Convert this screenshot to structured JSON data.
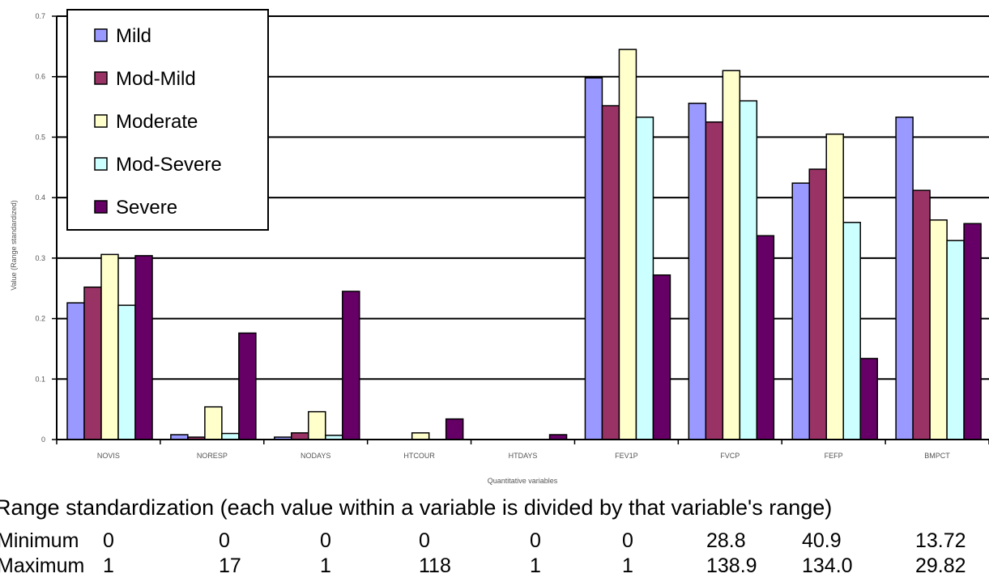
{
  "chart_data": {
    "type": "bar",
    "categories": [
      "NOVIS",
      "NORESP",
      "NODAYS",
      "HTCOUR",
      "HTDAYS",
      "FEV1P",
      "FVCP",
      "FEFP",
      "BMPCT"
    ],
    "series": [
      {
        "name": "Mild",
        "color": "#9999ff",
        "values": [
          0.226,
          0.008,
          0.004,
          0.0,
          0.0,
          0.598,
          0.556,
          0.424,
          0.533
        ]
      },
      {
        "name": "Mod-Mild",
        "color": "#993366",
        "values": [
          0.252,
          0.004,
          0.011,
          0.0,
          0.0,
          0.552,
          0.525,
          0.447,
          0.412
        ]
      },
      {
        "name": "Moderate",
        "color": "#ffffcc",
        "values": [
          0.306,
          0.054,
          0.046,
          0.011,
          0.0,
          0.645,
          0.61,
          0.505,
          0.363
        ]
      },
      {
        "name": "Mod-Severe",
        "color": "#ccffff",
        "values": [
          0.222,
          0.01,
          0.007,
          0.0,
          0.0,
          0.533,
          0.56,
          0.359,
          0.329
        ]
      },
      {
        "name": "Severe",
        "color": "#660066",
        "values": [
          0.304,
          0.176,
          0.245,
          0.034,
          0.008,
          0.272,
          0.337,
          0.134,
          0.357
        ]
      }
    ],
    "ylim": [
      0,
      0.7
    ],
    "yticks": [
      "0",
      "0.1",
      "0.2",
      "0.3",
      "0.4",
      "0.5",
      "0.6",
      "0.7"
    ],
    "xlabel": "Quantitative variables",
    "ylabel": "Value (Range standardized)",
    "grid": true,
    "legend_position": "top-left"
  },
  "caption": "Range standardization (each value within a variable is divided by that variable's range)",
  "stats": {
    "minimum": {
      "label": "Minimum",
      "values": [
        "0",
        "0",
        "0",
        "0",
        "0",
        "0",
        "28.8",
        "40.9",
        "13.72"
      ]
    },
    "maximum": {
      "label": "Maximum",
      "values": [
        "1",
        "17",
        "1",
        "118",
        "1",
        "1",
        "138.9",
        "134.0",
        "29.82"
      ]
    }
  }
}
